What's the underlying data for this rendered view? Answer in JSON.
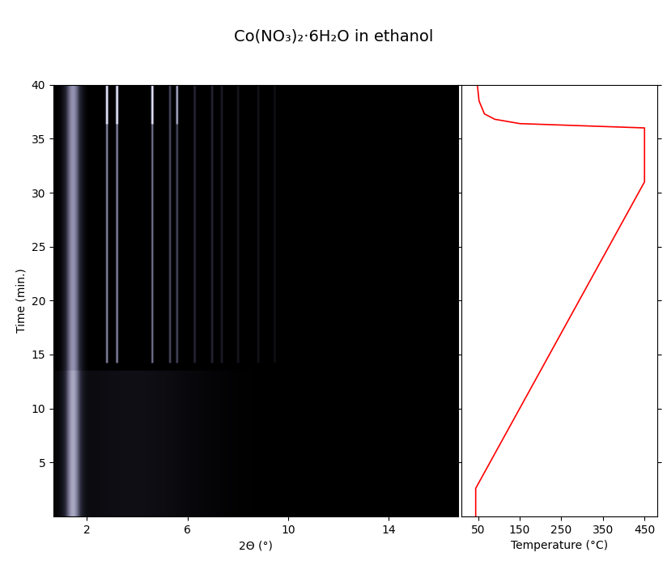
{
  "title": "Co(NO₃)₂·6H₂O in ethanol",
  "chart_data": [
    {
      "type": "heatmap",
      "xlabel": "2Θ (°)",
      "ylabel": "Time (min.)",
      "xlim": [
        0.68,
        16.75
      ],
      "ylim": [
        0,
        40
      ],
      "xticks": [
        2,
        6,
        10,
        14
      ],
      "yticks": [
        5,
        10,
        15,
        20,
        25,
        30,
        35,
        40
      ],
      "peaks": [
        {
          "x": 1.45,
          "width": 0.22,
          "start": 0,
          "end": 40,
          "intensity": 0.42
        },
        {
          "x": 3.8,
          "width": 2.2,
          "start": 0,
          "end": 13.5,
          "intensity": 0.07
        },
        {
          "x": 2.8,
          "width": 0.03,
          "start": 14.2,
          "end": 40,
          "intensity": 0.45
        },
        {
          "x": 3.2,
          "width": 0.03,
          "start": 14.2,
          "end": 40,
          "intensity": 0.45
        },
        {
          "x": 4.6,
          "width": 0.03,
          "start": 14.2,
          "end": 40,
          "intensity": 0.4
        },
        {
          "x": 5.3,
          "width": 0.03,
          "start": 14.2,
          "end": 40,
          "intensity": 0.3
        },
        {
          "x": 5.58,
          "width": 0.03,
          "start": 14.2,
          "end": 40,
          "intensity": 0.3
        },
        {
          "x": 6.28,
          "width": 0.03,
          "start": 14.2,
          "end": 40,
          "intensity": 0.2
        },
        {
          "x": 6.97,
          "width": 0.03,
          "start": 14.2,
          "end": 40,
          "intensity": 0.2
        },
        {
          "x": 7.35,
          "width": 0.03,
          "start": 14.2,
          "end": 40,
          "intensity": 0.15
        },
        {
          "x": 8.0,
          "width": 0.03,
          "start": 14.2,
          "end": 40,
          "intensity": 0.12
        },
        {
          "x": 8.8,
          "width": 0.03,
          "start": 14.2,
          "end": 40,
          "intensity": 0.1
        },
        {
          "x": 9.45,
          "width": 0.03,
          "start": 14.2,
          "end": 40,
          "intensity": 0.08
        },
        {
          "x": 2.8,
          "width": 0.03,
          "start": 36.3,
          "end": 40,
          "intensity": 0.45
        },
        {
          "x": 3.2,
          "width": 0.03,
          "start": 36.3,
          "end": 40,
          "intensity": 0.45
        },
        {
          "x": 4.6,
          "width": 0.03,
          "start": 36.3,
          "end": 40,
          "intensity": 0.45
        },
        {
          "x": 5.58,
          "width": 0.03,
          "start": 36.3,
          "end": 40,
          "intensity": 0.25
        }
      ]
    },
    {
      "type": "line",
      "xlabel": "Temperature (°C)",
      "color": "#ff0000",
      "temperature": [
        44,
        44,
        450,
        450,
        300,
        150,
        90,
        65,
        52,
        48
      ],
      "time": [
        0,
        2.6,
        31,
        36.0,
        36.2,
        36.4,
        36.8,
        37.3,
        38.5,
        40
      ],
      "xlim": [
        10,
        480
      ],
      "ylim": [
        0,
        40
      ],
      "xticks": [
        50,
        150,
        250,
        350,
        450
      ],
      "yticks": [
        5,
        10,
        15,
        20,
        25,
        30,
        35,
        40
      ],
      "tick_labels": "x"
    }
  ]
}
